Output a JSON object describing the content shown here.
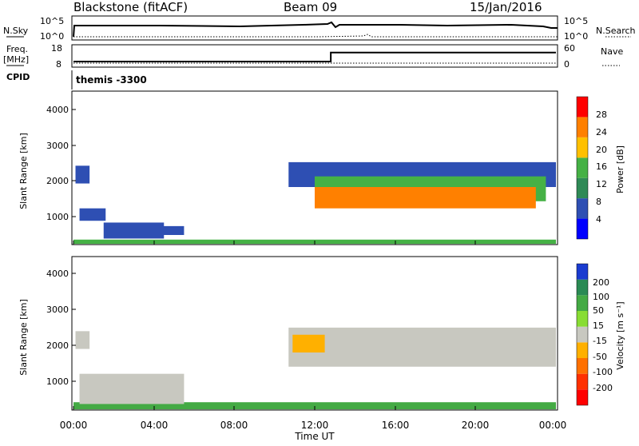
{
  "header": {
    "title": "Blackstone (fitACF)",
    "beam": "Beam 09",
    "date": "15/Jan/2016"
  },
  "top_panel": {
    "left_label": "N.Sky",
    "right_label": "N.Search",
    "ticks_left": [
      "10^5",
      "10^0"
    ],
    "ticks_right": [
      "10^5",
      "10^0"
    ]
  },
  "freq_panel": {
    "left_label": "Freq.",
    "left_unit": "[MHz]",
    "right_label": "Nave",
    "ticks_left": [
      "18",
      "8"
    ],
    "ticks_right": [
      "60",
      "0"
    ]
  },
  "cpid": {
    "label": "CPID",
    "value": "themis -3300"
  },
  "x_axis": {
    "label": "Time UT",
    "ticks": [
      "00:00",
      "04:00",
      "08:00",
      "12:00",
      "16:00",
      "20:00",
      "00:00"
    ]
  },
  "power_panel": {
    "ylabel": "Slant Range [km]",
    "yticks": [
      "1000",
      "2000",
      "3000",
      "4000"
    ],
    "colorbar_label": "Power [dB]",
    "colorbar_ticks": [
      "4",
      "8",
      "12",
      "16",
      "20",
      "24",
      "28"
    ],
    "colors": [
      "#0000ff",
      "#2e4fb3",
      "#2f8a56",
      "#45b145",
      "#ffc000",
      "#ff8000",
      "#ff0000"
    ]
  },
  "velocity_panel": {
    "ylabel": "Slant Range [km]",
    "yticks": [
      "1000",
      "2000",
      "3000",
      "4000"
    ],
    "colorbar_label": "Velocity [m s⁻¹]",
    "colorbar_ticks": [
      "200",
      "100",
      "50",
      "15",
      "-15",
      "-50",
      "-100",
      "-200"
    ],
    "colors": [
      "#1a3bd0",
      "#2a8a54",
      "#44aa44",
      "#88dd33",
      "#c8c8c0",
      "#ffb000",
      "#ff7000",
      "#ff3000",
      "#ff0000"
    ]
  },
  "chart_data": {
    "type": "heatmap",
    "x_unit": "hours UT",
    "y_unit": "km",
    "xlim": [
      0,
      24
    ],
    "ylim": [
      180,
      4500
    ],
    "power_regions": [
      {
        "t0": 0.0,
        "t1": 24.0,
        "r0": 200,
        "r1": 320,
        "level": 3
      },
      {
        "t0": 0.1,
        "t1": 0.8,
        "r0": 1900,
        "r1": 2400,
        "level": 1
      },
      {
        "t0": 0.3,
        "t1": 1.6,
        "r0": 850,
        "r1": 1200,
        "level": 1
      },
      {
        "t0": 1.5,
        "t1": 4.5,
        "r0": 350,
        "r1": 800,
        "level": 1
      },
      {
        "t0": 4.0,
        "t1": 5.5,
        "r0": 450,
        "r1": 700,
        "level": 1
      },
      {
        "t0": 10.7,
        "t1": 24.0,
        "r0": 1800,
        "r1": 2500,
        "level": 1
      },
      {
        "t0": 12.0,
        "t1": 23.5,
        "r0": 1400,
        "r1": 2100,
        "level": 3
      },
      {
        "t0": 12.0,
        "t1": 23.0,
        "r0": 1200,
        "r1": 1800,
        "level": 5
      }
    ],
    "velocity_regions": [
      {
        "t0": 0.0,
        "t1": 24.0,
        "r0": 200,
        "r1": 400,
        "level": 2
      },
      {
        "t0": 0.1,
        "t1": 0.8,
        "r0": 1900,
        "r1": 2400,
        "level": 4
      },
      {
        "t0": 0.3,
        "t1": 5.5,
        "r0": 350,
        "r1": 1200,
        "level": 4
      },
      {
        "t0": 10.7,
        "t1": 24.0,
        "r0": 1400,
        "r1": 2500,
        "level": 4
      },
      {
        "t0": 10.9,
        "t1": 12.5,
        "r0": 1800,
        "r1": 2300,
        "level": 5
      }
    ],
    "freq_steps": [
      {
        "t0": 0.0,
        "t1": 12.8,
        "freq_mhz": 10.5
      },
      {
        "t0": 12.8,
        "t1": 24.0,
        "freq_mhz": 14.5
      }
    ]
  }
}
